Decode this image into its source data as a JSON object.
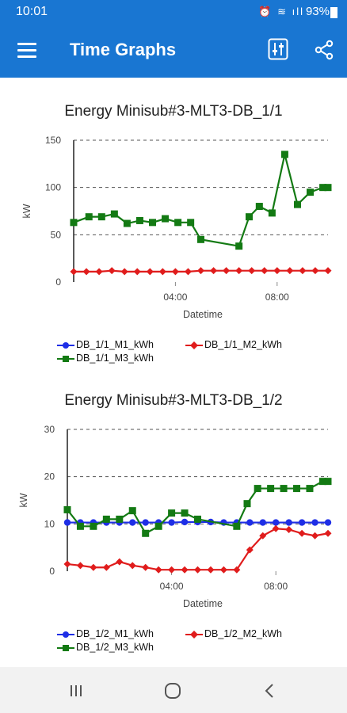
{
  "status": {
    "time": "10:01",
    "battery": "93%",
    "icons": "⏰ ≋ ıll"
  },
  "appbar": {
    "title": "Time Graphs",
    "menu_icon": "menu-icon",
    "filter_icon": "filter-icon",
    "share_icon": "share-icon"
  },
  "colors": {
    "primary": "#1976d2",
    "m1": "#1e2ee6",
    "m2": "#e01c1c",
    "m3": "#137a13"
  },
  "chart_data": [
    {
      "type": "line",
      "title": "Energy Minisub#3-MLT3-DB_1/1",
      "xlabel": "Datetime",
      "ylabel": "kW",
      "x_ticks": [
        "04:00",
        "08:00"
      ],
      "y_ticks": [
        0,
        50,
        100,
        150
      ],
      "ylim": [
        0,
        150
      ],
      "xlim": [
        0.0,
        10.0
      ],
      "legend": [
        "DB_1/1_M1_kWh",
        "DB_1/1_M2_kWh",
        "DB_1/1_M3_kWh"
      ],
      "series": [
        {
          "name": "DB_1/1_M1_kWh",
          "x": [],
          "values": []
        },
        {
          "name": "DB_1/1_M2_kWh",
          "x": [
            0.0,
            0.5,
            1.0,
            1.5,
            2.0,
            2.5,
            3.0,
            3.5,
            4.0,
            4.5,
            5.0,
            5.5,
            6.0,
            6.5,
            7.0,
            7.5,
            8.0,
            8.5,
            9.0,
            9.5,
            10.0
          ],
          "values": [
            11,
            11,
            11,
            12,
            11,
            11,
            11,
            11,
            11,
            11,
            12,
            12,
            12,
            12,
            12,
            12,
            12,
            12,
            12,
            12,
            12
          ]
        },
        {
          "name": "DB_1/1_M3_kWh",
          "x": [
            0.0,
            0.6,
            1.1,
            1.6,
            2.1,
            2.6,
            3.1,
            3.6,
            4.1,
            4.6,
            5.0,
            6.5,
            6.9,
            7.3,
            7.8,
            8.3,
            8.8,
            9.3,
            9.8,
            10.3
          ],
          "values": [
            63,
            69,
            69,
            72,
            62,
            65,
            63,
            67,
            63,
            63,
            45,
            38,
            69,
            80,
            73,
            135,
            82,
            95,
            100,
            100
          ]
        }
      ]
    },
    {
      "type": "line",
      "title": "Energy Minisub#3-MLT3-DB_1/2",
      "xlabel": "Datetime",
      "ylabel": "kW",
      "x_ticks": [
        "04:00",
        "08:00"
      ],
      "y_ticks": [
        0,
        10,
        20,
        30
      ],
      "ylim": [
        0,
        30
      ],
      "xlim": [
        0.0,
        10.0
      ],
      "legend": [
        "DB_1/2_M1_kWh",
        "DB_1/2_M2_kWh",
        "DB_1/2_M3_kWh"
      ],
      "series": [
        {
          "name": "DB_1/2_M1_kWh",
          "x": [
            0.0,
            0.5,
            1.0,
            1.5,
            2.0,
            2.5,
            3.0,
            3.5,
            4.0,
            4.5,
            5.0,
            5.5,
            6.0,
            6.5,
            7.0,
            7.5,
            8.0,
            8.5,
            9.0,
            9.5,
            10.0
          ],
          "values": [
            10.3,
            10.3,
            10.3,
            10.3,
            10.3,
            10.3,
            10.3,
            10.3,
            10.3,
            10.4,
            10.4,
            10.4,
            10.3,
            10.3,
            10.3,
            10.3,
            10.3,
            10.3,
            10.3,
            10.3,
            10.3
          ]
        },
        {
          "name": "DB_1/2_M2_kWh",
          "x": [
            0.0,
            0.5,
            1.0,
            1.5,
            2.0,
            2.5,
            3.0,
            3.5,
            4.0,
            4.5,
            5.0,
            5.5,
            6.0,
            6.5,
            7.0,
            7.5,
            8.0,
            8.5,
            9.0,
            9.5,
            10.0
          ],
          "values": [
            1.5,
            1.2,
            0.8,
            0.8,
            2.0,
            1.2,
            0.8,
            0.3,
            0.3,
            0.3,
            0.3,
            0.3,
            0.3,
            0.3,
            4.5,
            7.5,
            9.0,
            8.8,
            8.0,
            7.5,
            8.0
          ]
        },
        {
          "name": "DB_1/2_M3_kWh",
          "x": [
            0.0,
            0.5,
            1.0,
            1.5,
            2.0,
            2.5,
            3.0,
            3.5,
            4.0,
            4.5,
            5.0,
            6.5,
            6.9,
            7.3,
            7.8,
            8.3,
            8.8,
            9.3,
            9.8,
            10.3
          ],
          "values": [
            13,
            9.5,
            9.5,
            11,
            11,
            12.8,
            8,
            9.5,
            12.3,
            12.3,
            11,
            9.5,
            14.3,
            17.5,
            17.5,
            17.5,
            17.5,
            17.5,
            19,
            19
          ]
        }
      ]
    }
  ],
  "nav": {
    "recent_icon": "recent-apps-icon",
    "home_icon": "home-icon",
    "back_icon": "back-icon"
  }
}
